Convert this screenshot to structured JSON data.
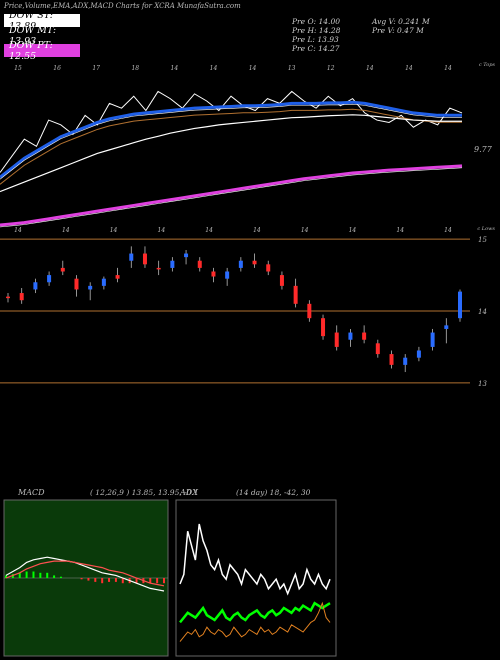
{
  "header": {
    "title": "Price,Volume,EMA,ADX,MACD Charts for XCRA MunafaSutra.com"
  },
  "legend": [
    {
      "label": "DOW ST: 13.89",
      "bg": "#ffffff",
      "fg": "#000000"
    },
    {
      "label": "DOW MT: 13.93",
      "bg": "#000000",
      "fg": "#ffffff"
    },
    {
      "label": "DOW PT: 12.55",
      "bg": "#e040e0",
      "fg": "#ffffff"
    }
  ],
  "quote": {
    "prev_open": "Pre  O: 14.00",
    "prev_high": "Pre  H: 14.28",
    "prev_low": "Pre  L: 13.93",
    "prev_close": "Pre  C: 14.27",
    "avg_volume": "Avg V: 0.241 M",
    "prev_volume": "Pre  V: 0.47 M"
  },
  "colors": {
    "up": "#2a6cff",
    "down": "#ff2a2a",
    "ema_white": "#ffffff",
    "ema_blue": "#1f5fe8",
    "ema_brown": "#b07030",
    "ema_magenta": "#e040e0",
    "macd_bg": "#0a3a0a",
    "adx_line": "#00ff00"
  },
  "chart_data": [
    {
      "type": "line",
      "panel": "ema-volume",
      "date_labels": [
        "15",
        "16",
        "17",
        "18",
        "14",
        "14",
        "14",
        "13",
        "12",
        "14",
        "14",
        "14"
      ],
      "right_labels": [
        "c Tops",
        "9.77",
        "c Lows"
      ],
      "series": [
        {
          "values": [
            10.2,
            10.9,
            11.6,
            11.3,
            12.4,
            12.2,
            11.8,
            12.6,
            12.2,
            13.1,
            12.9,
            13.4,
            12.8,
            13.6,
            13.3,
            12.9,
            13.5,
            13.2,
            12.8,
            13.4,
            13.0,
            12.8,
            13.3,
            13.1,
            13.6,
            13.2,
            12.9,
            13.4,
            13.0,
            13.3,
            12.7,
            12.4,
            12.3,
            12.6,
            12.1,
            12.4,
            12.2,
            12.9,
            12.7
          ]
        },
        {
          "values": [
            10.0,
            10.4,
            10.8,
            11.1,
            11.4,
            11.7,
            11.9,
            12.1,
            12.3,
            12.45,
            12.55,
            12.65,
            12.7,
            12.75,
            12.8,
            12.85,
            12.9,
            12.92,
            12.95,
            12.97,
            13.0,
            13.0,
            13.02,
            13.05,
            13.1,
            13.1,
            13.1,
            13.12,
            13.12,
            13.15,
            13.1,
            13.0,
            12.9,
            12.8,
            12.7,
            12.65,
            12.6,
            12.6,
            12.6
          ]
        },
        {
          "values": [
            9.4,
            9.6,
            9.8,
            10.0,
            10.2,
            10.4,
            10.6,
            10.8,
            11.0,
            11.15,
            11.3,
            11.45,
            11.6,
            11.72,
            11.85,
            11.95,
            12.05,
            12.12,
            12.2,
            12.25,
            12.3,
            12.35,
            12.4,
            12.45,
            12.5,
            12.52,
            12.55,
            12.58,
            12.6,
            12.62,
            12.6,
            12.55,
            12.5,
            12.45,
            12.4,
            12.38,
            12.35,
            12.35,
            12.35
          ]
        },
        {
          "values": [
            8.0,
            8.05,
            8.1,
            8.18,
            8.26,
            8.34,
            8.42,
            8.5,
            8.58,
            8.66,
            8.74,
            8.82,
            8.9,
            8.98,
            9.06,
            9.14,
            9.22,
            9.3,
            9.38,
            9.46,
            9.54,
            9.62,
            9.7,
            9.78,
            9.86,
            9.94,
            10.0,
            10.06,
            10.12,
            10.18,
            10.22,
            10.26,
            10.3,
            10.33,
            10.36,
            10.39,
            10.42,
            10.45,
            10.48
          ]
        }
      ]
    },
    {
      "type": "candlestick",
      "panel": "price",
      "date_labels": [
        "14",
        "14",
        "14",
        "14",
        "14",
        "14",
        "14",
        "14",
        "14",
        "14"
      ],
      "y_ticks": [
        15,
        14,
        13
      ],
      "series": [
        {
          "values": [
            [
              14.2,
              14.25,
              14.12,
              14.18
            ],
            [
              14.25,
              14.32,
              14.1,
              14.15
            ],
            [
              14.3,
              14.45,
              14.25,
              14.4
            ],
            [
              14.4,
              14.55,
              14.35,
              14.5
            ],
            [
              14.6,
              14.7,
              14.5,
              14.55
            ],
            [
              14.45,
              14.5,
              14.2,
              14.3
            ],
            [
              14.3,
              14.4,
              14.15,
              14.35
            ],
            [
              14.35,
              14.48,
              14.3,
              14.45
            ],
            [
              14.5,
              14.6,
              14.4,
              14.45
            ],
            [
              14.7,
              14.9,
              14.6,
              14.8
            ],
            [
              14.8,
              14.9,
              14.6,
              14.65
            ],
            [
              14.6,
              14.7,
              14.5,
              14.58
            ],
            [
              14.6,
              14.75,
              14.55,
              14.7
            ],
            [
              14.75,
              14.85,
              14.65,
              14.8
            ],
            [
              14.7,
              14.75,
              14.55,
              14.6
            ],
            [
              14.55,
              14.6,
              14.4,
              14.48
            ],
            [
              14.45,
              14.6,
              14.35,
              14.55
            ],
            [
              14.6,
              14.75,
              14.55,
              14.7
            ],
            [
              14.7,
              14.8,
              14.6,
              14.65
            ],
            [
              14.65,
              14.7,
              14.5,
              14.55
            ],
            [
              14.5,
              14.55,
              14.3,
              14.35
            ],
            [
              14.35,
              14.45,
              14.05,
              14.1
            ],
            [
              14.1,
              14.15,
              13.85,
              13.9
            ],
            [
              13.9,
              13.95,
              13.6,
              13.65
            ],
            [
              13.7,
              13.8,
              13.45,
              13.5
            ],
            [
              13.6,
              13.75,
              13.5,
              13.7
            ],
            [
              13.7,
              13.8,
              13.55,
              13.6
            ],
            [
              13.55,
              13.6,
              13.35,
              13.4
            ],
            [
              13.4,
              13.45,
              13.2,
              13.25
            ],
            [
              13.25,
              13.4,
              13.15,
              13.35
            ],
            [
              13.35,
              13.5,
              13.3,
              13.45
            ],
            [
              13.5,
              13.75,
              13.45,
              13.7
            ],
            [
              13.75,
              13.9,
              13.55,
              13.8
            ],
            [
              13.9,
              14.3,
              13.85,
              14.27
            ]
          ]
        }
      ]
    },
    {
      "type": "line",
      "panel": "macd",
      "title": "MACD",
      "params": "( 12,26,9 ) 13.85, 13.95, -0.1",
      "series": [
        {
          "values": [
            0.02,
            0.05,
            0.08,
            0.12,
            0.14,
            0.15,
            0.16,
            0.15,
            0.14,
            0.13,
            0.12,
            0.1,
            0.08,
            0.06,
            0.04,
            0.03,
            0.02,
            0.0,
            -0.02,
            -0.04,
            -0.06,
            -0.08,
            -0.09,
            -0.1
          ]
        },
        {
          "values": [
            0.0,
            0.02,
            0.04,
            0.07,
            0.09,
            0.11,
            0.12,
            0.13,
            0.13,
            0.13,
            0.12,
            0.11,
            0.1,
            0.09,
            0.08,
            0.06,
            0.05,
            0.04,
            0.02,
            0.0,
            -0.02,
            -0.04,
            -0.05,
            -0.06
          ]
        }
      ]
    },
    {
      "type": "line",
      "panel": "adx",
      "title": "ADX",
      "params": "(14 day) 18, -42, 30",
      "series": [
        {
          "values": [
            30,
            34,
            52,
            46,
            40,
            55,
            48,
            44,
            38,
            36,
            40,
            34,
            32,
            38,
            36,
            34,
            30,
            36,
            34,
            32,
            30,
            34,
            32,
            28,
            30,
            32,
            28,
            30,
            26,
            30,
            34,
            28,
            30,
            36,
            32,
            30,
            34,
            30,
            28,
            32
          ]
        },
        {
          "values": [
            14,
            16,
            18,
            17,
            16,
            18,
            20,
            17,
            16,
            15,
            17,
            19,
            16,
            15,
            17,
            18,
            16,
            15,
            17,
            18,
            19,
            17,
            16,
            18,
            19,
            17,
            18,
            20,
            19,
            18,
            20,
            19,
            21,
            20,
            19,
            22,
            21,
            20,
            21,
            22
          ]
        },
        {
          "values": [
            6,
            8,
            10,
            9,
            11,
            8,
            9,
            12,
            10,
            9,
            11,
            10,
            8,
            9,
            12,
            10,
            8,
            9,
            11,
            10,
            9,
            12,
            10,
            11,
            9,
            10,
            12,
            11,
            10,
            13,
            12,
            11,
            10,
            12,
            14,
            15,
            18,
            22,
            16,
            14
          ]
        }
      ]
    }
  ]
}
